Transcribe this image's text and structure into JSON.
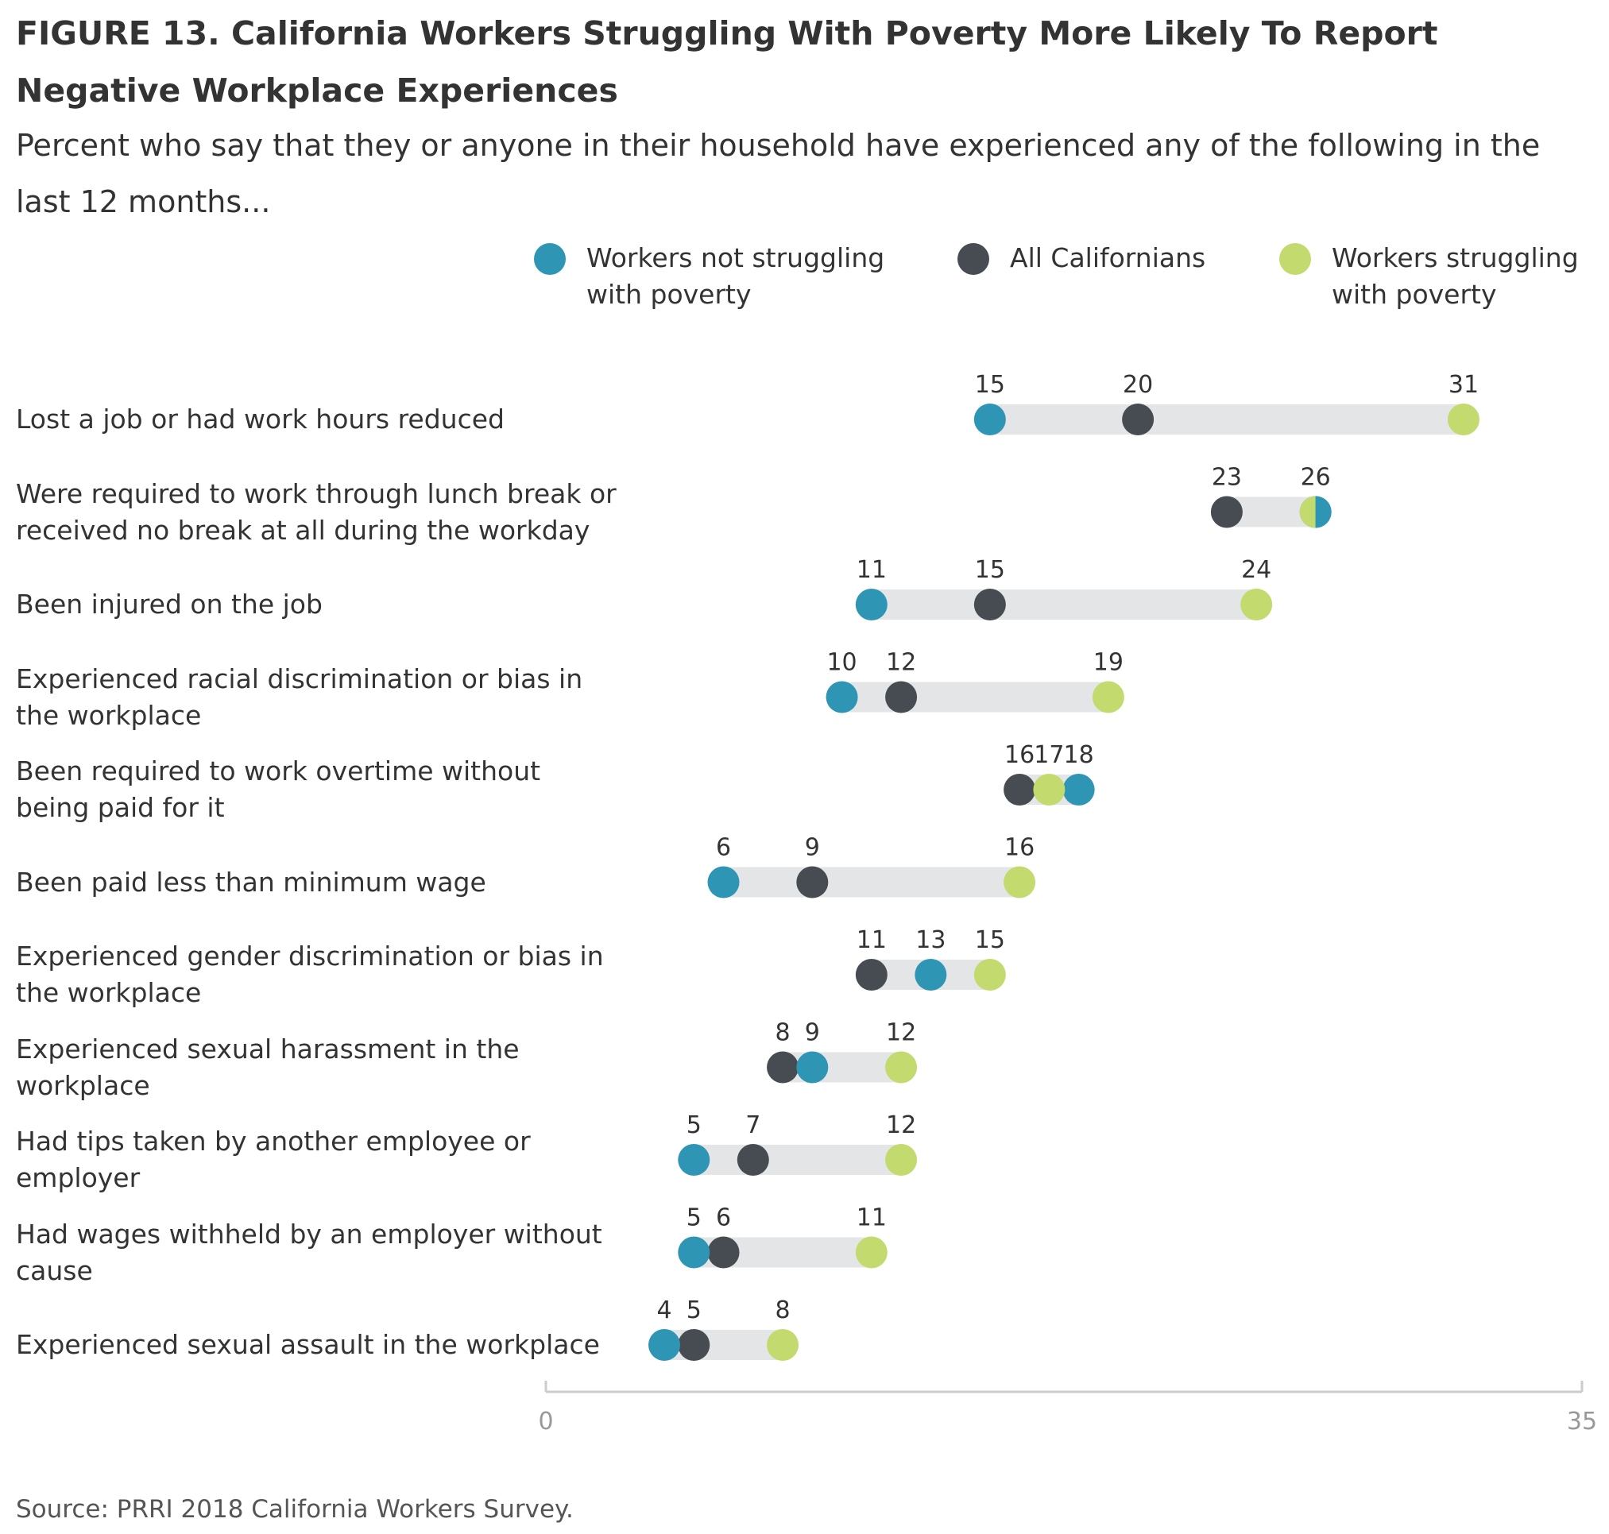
{
  "title": "FIGURE 13. California Workers Struggling With Poverty More Likely To Report Negative Workplace Experiences",
  "subtitle": "Percent who say that they or anyone in their household have experienced any of the following in the last 12 months...",
  "source": "Source: PRRI 2018 California Workers Survey.",
  "colors": {
    "not_struggling": "#2e95b5",
    "all": "#464c51",
    "struggling": "#c3da6e",
    "bar": "#e4e5e6",
    "axis": "#cccccc"
  },
  "legend": [
    {
      "key": "not_struggling",
      "label": "Workers not struggling with poverty"
    },
    {
      "key": "all",
      "label": "All Californians"
    },
    {
      "key": "struggling",
      "label": "Workers struggling with poverty"
    }
  ],
  "chart_data": {
    "type": "dot-range",
    "title": "FIGURE 13. California Workers Struggling With Poverty More Likely To Report Negative Workplace Experiences",
    "subtitle": "Percent who say that they or anyone in their household have experienced any of the following in the last 12 months...",
    "xlim": [
      0,
      35
    ],
    "x_ticks": [
      "0",
      "35"
    ],
    "grid": false,
    "legend_position": "top-right",
    "categories": [
      "Lost a job or had work hours reduced",
      "Were required to work through lunch break or received no break at all during the workday",
      "Been injured on the job",
      "Experienced racial discrimination or bias in the workplace",
      "Been required to work overtime without being paid for it",
      "Been paid less than minimum wage",
      "Experienced gender discrimination or bias in the workplace",
      "Experienced sexual harassment in the workplace",
      "Had tips taken by another employee or employer",
      "Had wages withheld by an employer without cause",
      "Experienced sexual assault in the workplace"
    ],
    "series": [
      {
        "name": "Workers not struggling with poverty",
        "key": "not_struggling",
        "values": [
          15,
          26,
          11,
          10,
          18,
          6,
          13,
          9,
          5,
          5,
          4
        ]
      },
      {
        "name": "All Californians",
        "key": "all",
        "values": [
          20,
          23,
          15,
          12,
          16,
          9,
          11,
          8,
          7,
          6,
          5
        ]
      },
      {
        "name": "Workers struggling with poverty",
        "key": "struggling",
        "values": [
          31,
          26,
          24,
          19,
          17,
          16,
          15,
          12,
          12,
          11,
          8
        ]
      }
    ]
  }
}
